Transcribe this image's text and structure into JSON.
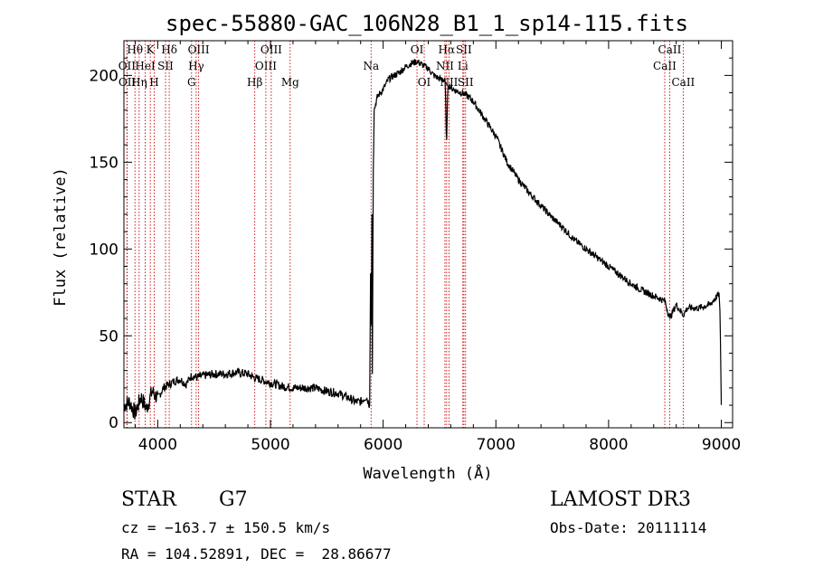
{
  "chart_data": {
    "type": "line",
    "title": "spec-55880-GAC_106N28_B1_1_sp14-115.fits",
    "xlabel": "Wavelength (Å)",
    "ylabel": "Flux (relative)",
    "xlim": [
      3700,
      9100
    ],
    "ylim": [
      -3,
      220
    ],
    "xticks": [
      4000,
      5000,
      6000,
      7000,
      8000,
      9000
    ],
    "yticks": [
      0,
      50,
      100,
      150,
      200
    ],
    "series": [
      {
        "name": "flux",
        "x": [
          3700,
          3750,
          3800,
          3850,
          3900,
          3950,
          4000,
          4050,
          4100,
          4150,
          4200,
          4250,
          4300,
          4350,
          4400,
          4500,
          4600,
          4700,
          4800,
          4850,
          4900,
          5000,
          5100,
          5200,
          5300,
          5400,
          5500,
          5600,
          5700,
          5750,
          5800,
          5850,
          5880,
          5890,
          5895,
          5900,
          5905,
          5910,
          5920,
          5950,
          6000,
          6050,
          6100,
          6150,
          6200,
          6250,
          6300,
          6350,
          6400,
          6450,
          6500,
          6550,
          6563,
          6575,
          6600,
          6650,
          6700,
          6750,
          6800,
          6850,
          6900,
          7000,
          7100,
          7200,
          7300,
          7400,
          7500,
          7600,
          7700,
          7800,
          7900,
          8000,
          8100,
          8200,
          8300,
          8400,
          8500,
          8542,
          8600,
          8662,
          8700,
          8800,
          8900,
          8950,
          8980,
          8990,
          9000
        ],
        "y": [
          10,
          12,
          5,
          15,
          8,
          18,
          14,
          20,
          22,
          24,
          25,
          22,
          27,
          26,
          27,
          28,
          28,
          29,
          28,
          26,
          25,
          23,
          21,
          20,
          20,
          20,
          18,
          17,
          14,
          12,
          12,
          15,
          10,
          105,
          40,
          120,
          5,
          135,
          180,
          188,
          192,
          198,
          200,
          202,
          205,
          207,
          208,
          206,
          204,
          200,
          198,
          197,
          160,
          195,
          193,
          191,
          190,
          188,
          185,
          180,
          175,
          165,
          150,
          140,
          132,
          125,
          118,
          112,
          105,
          100,
          95,
          90,
          85,
          80,
          76,
          73,
          70,
          60,
          68,
          62,
          66,
          66,
          68,
          72,
          74,
          60,
          10
        ]
      }
    ],
    "line_markers": [
      {
        "wave": 3798,
        "label": "Hθ",
        "row": 1
      },
      {
        "wave": 3727,
        "label": "OII",
        "row": 2
      },
      {
        "wave": 3729,
        "label": "OII",
        "row": 3
      },
      {
        "wave": 3835,
        "label": "Hη",
        "row": 3
      },
      {
        "wave": 3889,
        "label": "HeI",
        "row": 2
      },
      {
        "wave": 3934,
        "label": "K",
        "row": 1
      },
      {
        "wave": 3969,
        "label": "H",
        "row": 3
      },
      {
        "wave": 4069,
        "label": "SII",
        "row": 2
      },
      {
        "wave": 4102,
        "label": "Hδ",
        "row": 1
      },
      {
        "wave": 4300,
        "label": "G",
        "row": 3
      },
      {
        "wave": 4341,
        "label": "Hγ",
        "row": 2
      },
      {
        "wave": 4363,
        "label": "OIII",
        "row": 1
      },
      {
        "wave": 4861,
        "label": "Hβ",
        "row": 3
      },
      {
        "wave": 4959,
        "label": "OIII",
        "row": 2
      },
      {
        "wave": 5007,
        "label": "OIII",
        "row": 1
      },
      {
        "wave": 5175,
        "label": "Mg",
        "row": 3
      },
      {
        "wave": 5893,
        "label": "Na",
        "row": 2
      },
      {
        "wave": 6300,
        "label": "OI",
        "row": 1
      },
      {
        "wave": 6364,
        "label": "OI",
        "row": 3
      },
      {
        "wave": 6548,
        "label": "NII",
        "row": 2
      },
      {
        "wave": 6563,
        "label": "Hα",
        "row": 1
      },
      {
        "wave": 6584,
        "label": "NII",
        "row": 3
      },
      {
        "wave": 6707,
        "label": "Li",
        "row": 2
      },
      {
        "wave": 6716,
        "label": "SII",
        "row": 1
      },
      {
        "wave": 6731,
        "label": "SII",
        "row": 3
      },
      {
        "wave": 8498,
        "label": "CaII",
        "row": 2
      },
      {
        "wave": 8542,
        "label": "CaII",
        "row": 1
      },
      {
        "wave": 8662,
        "label": "CaII",
        "row": 3
      }
    ],
    "colors": {
      "spectrum": "#000000",
      "marker": "#cc0000",
      "axis": "#000000"
    }
  },
  "info": {
    "class": "STAR",
    "subclass": "G7",
    "survey": "LAMOST DR3",
    "cz": "cz = −163.7 ± 150.5 km/s",
    "obs_date": "Obs-Date: 20111114",
    "radec": "RA = 104.52891, DEC =  28.86677"
  }
}
